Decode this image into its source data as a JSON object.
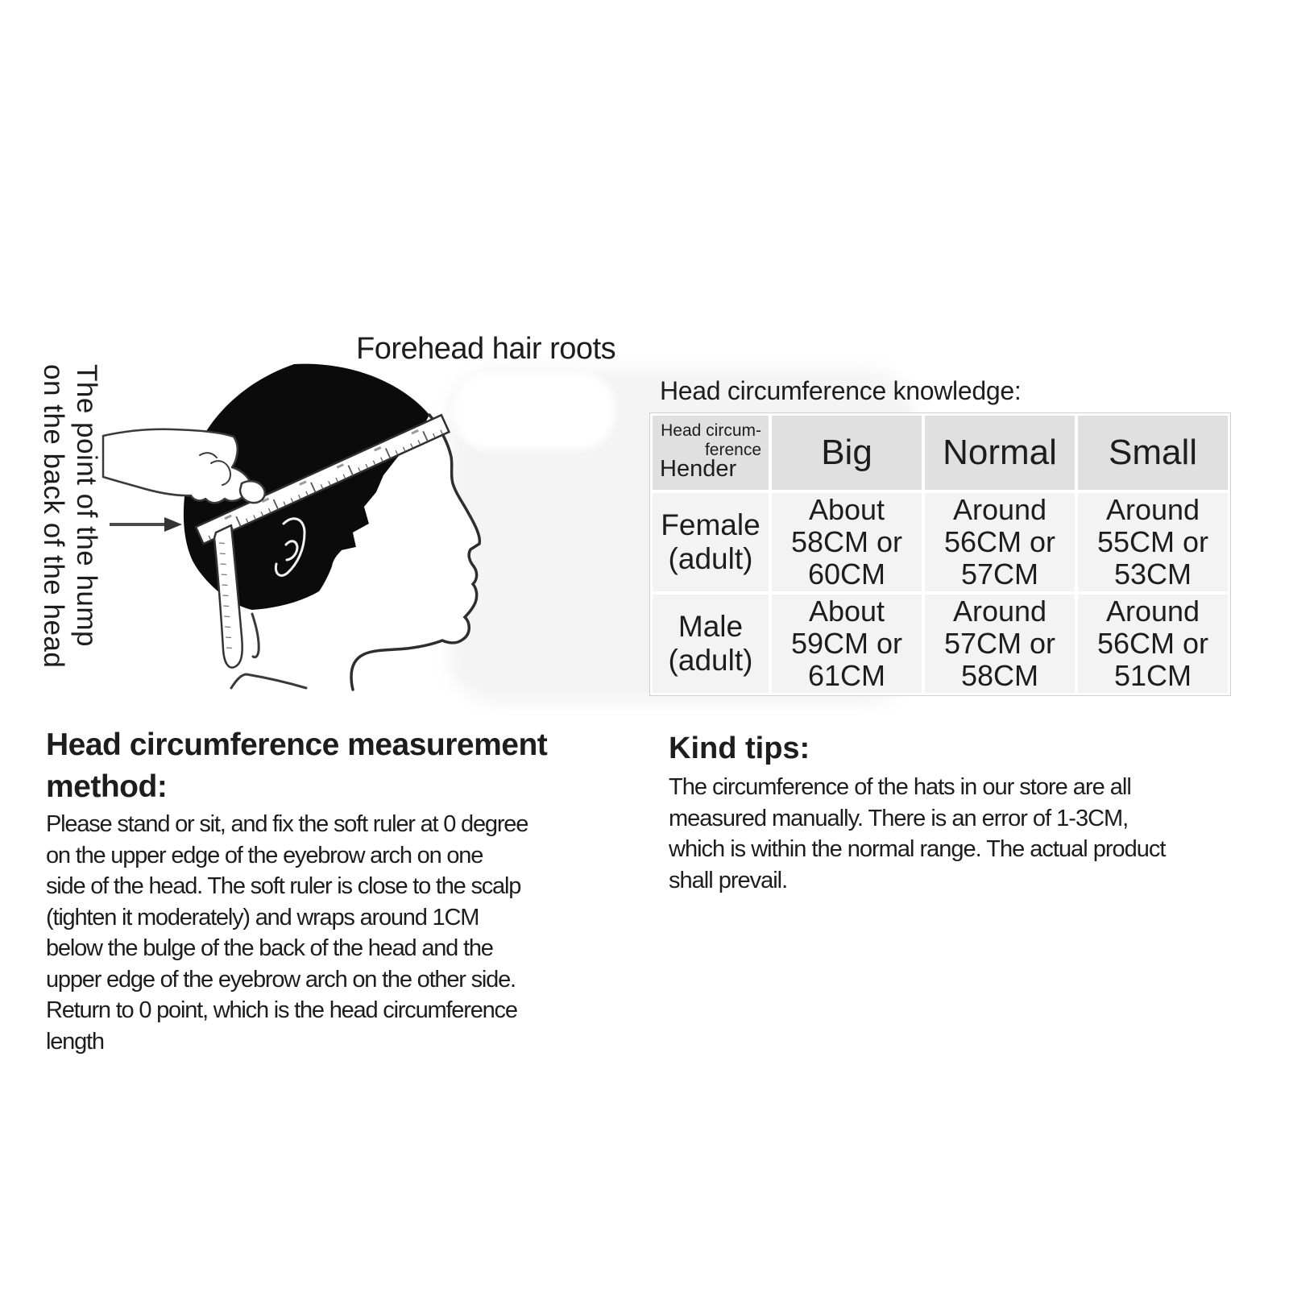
{
  "illustration": {
    "top_label": "Forehead hair roots",
    "side_label": "The point of the hump\non the back of the head"
  },
  "knowledge": {
    "heading": "Head circumference knowledge:",
    "table": {
      "corner_top": "Head circum-\nference",
      "corner_bottom": "Hender",
      "columns": [
        "Big",
        "Normal",
        "Small"
      ],
      "rows": [
        {
          "label": "Female\n(adult)",
          "values": [
            "About\n58CM or\n60CM",
            "Around\n56CM or\n57CM",
            "Around\n55CM or\n53CM"
          ]
        },
        {
          "label": "Male\n(adult)",
          "values": [
            "About\n59CM or\n61CM",
            "Around\n57CM or\n58CM",
            "Around\n56CM or\n51CM"
          ]
        }
      ]
    }
  },
  "method": {
    "heading": "Head circumference measurement\nmethod:",
    "body": "Please stand or sit, and fix the soft ruler at 0 degree\non the upper edge of the eyebrow arch on one\nside of the head. The soft ruler is close to the scalp\n(tighten it moderately) and wraps around 1CM\nbelow the bulge of the back of the head and the\nupper edge of the eyebrow arch on the other side.\nReturn to 0 point, which is the head circumference\nlength"
  },
  "tips": {
    "heading": "Kind tips:",
    "body": "The circumference of the hats in our store are all\nmeasured manually. There is an error of 1-3CM,\nwhich is within the normal range. The actual product\nshall prevail."
  },
  "colors": {
    "table_header_bg": "#e0e0e0",
    "table_cell_bg": "#f3f3f3",
    "text": "#1d1d1d"
  }
}
